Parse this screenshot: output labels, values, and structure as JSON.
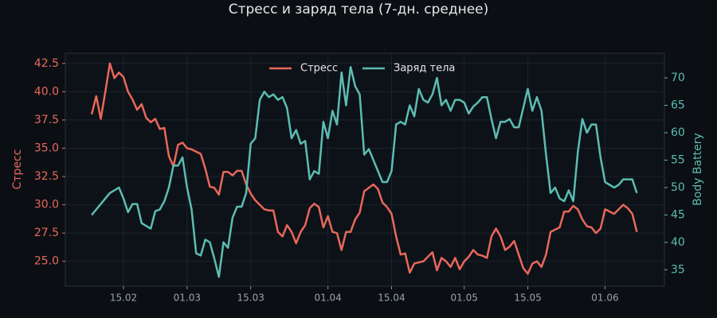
{
  "chart_data": {
    "type": "line",
    "title": "Стресс и заряд тела (7-дн. среднее)",
    "ylabel": "Стресс",
    "y2label": "Body Battery",
    "legend": "upper center",
    "grid": true,
    "x": [
      "08.02",
      "09.02",
      "10.02",
      "11.02",
      "12.02",
      "13.02",
      "14.02",
      "15.02",
      "16.02",
      "17.02",
      "18.02",
      "19.02",
      "20.02",
      "21.02",
      "22.02",
      "23.02",
      "24.02",
      "25.02",
      "26.02",
      "27.02",
      "28.02",
      "01.03",
      "02.03",
      "03.03",
      "04.03",
      "05.03",
      "06.03",
      "07.03",
      "08.03",
      "09.03",
      "10.03",
      "11.03",
      "12.03",
      "13.03",
      "14.03",
      "15.03",
      "16.03",
      "17.03",
      "18.03",
      "19.03",
      "20.03",
      "21.03",
      "22.03",
      "23.03",
      "24.03",
      "25.03",
      "26.03",
      "27.03",
      "28.03",
      "29.03",
      "30.03",
      "31.03",
      "01.04",
      "02.04",
      "03.04",
      "04.04",
      "05.04",
      "06.04",
      "07.04",
      "08.04",
      "09.04",
      "10.04",
      "11.04",
      "12.04",
      "13.04",
      "14.04",
      "15.04",
      "16.04",
      "17.04",
      "18.04",
      "19.04",
      "20.04",
      "21.04",
      "22.04",
      "23.04",
      "24.04",
      "25.04",
      "26.04",
      "27.04",
      "28.04",
      "29.04",
      "30.04",
      "01.05",
      "02.05",
      "03.05",
      "04.05",
      "05.05",
      "06.05",
      "07.05",
      "08.05",
      "09.05",
      "10.05",
      "11.05",
      "12.05",
      "13.05",
      "14.05",
      "15.05",
      "16.05",
      "17.05",
      "18.05",
      "19.05",
      "20.05",
      "21.05",
      "22.05",
      "23.05",
      "24.05",
      "25.05",
      "26.05",
      "27.05",
      "28.05",
      "29.05",
      "30.05",
      "31.05",
      "01.06",
      "02.06",
      "03.06",
      "04.06",
      "05.06",
      "06.06",
      "07.06",
      "08.06"
    ],
    "xticks": [
      "15.02",
      "01.03",
      "15.03",
      "01.04",
      "15.04",
      "01.05",
      "15.05",
      "01.06"
    ],
    "ylim": [
      22.8,
      43.4
    ],
    "yticks": [
      {
        "value": 25,
        "label": "25.0"
      },
      27.5,
      {
        "value": 30,
        "label": "30.0"
      },
      32.5,
      {
        "value": 35,
        "label": "35.0"
      },
      37.5,
      {
        "value": 40,
        "label": "40.0"
      },
      42.5
    ],
    "y2lim": [
      32,
      74.5
    ],
    "y2ticks": [
      35,
      40,
      45,
      50,
      55,
      60,
      65,
      70
    ],
    "series": [
      {
        "name": "Стресс",
        "color": "#e8685a",
        "axis": "y",
        "values": [
          38.0,
          39.6,
          37.6,
          40.0,
          42.5,
          41.2,
          41.7,
          41.3,
          40.0,
          39.3,
          38.4,
          38.9,
          37.7,
          37.3,
          37.6,
          36.7,
          36.8,
          34.3,
          33.4,
          35.3,
          35.5,
          35.0,
          34.9,
          34.7,
          34.5,
          33.2,
          31.6,
          31.5,
          30.9,
          32.9,
          32.9,
          32.6,
          33.0,
          33.0,
          31.8,
          31.0,
          30.4,
          30.0,
          29.6,
          29.5,
          29.5,
          27.6,
          27.2,
          28.2,
          27.6,
          26.6,
          27.6,
          28.2,
          29.7,
          30.1,
          29.8,
          28.0,
          29.0,
          27.6,
          27.5,
          26.0,
          27.6,
          27.6,
          28.7,
          29.3,
          31.2,
          31.5,
          31.8,
          31.4,
          30.2,
          29.8,
          29.2,
          27.2,
          25.6,
          25.7,
          24.0,
          24.8,
          24.9,
          25.0,
          25.4,
          25.8,
          24.2,
          25.3,
          25.0,
          24.5,
          25.3,
          24.3,
          25.0,
          25.4,
          26.0,
          25.6,
          25.5,
          25.3,
          27.2,
          27.9,
          27.2,
          26.0,
          26.3,
          26.8,
          25.6,
          24.4,
          23.9,
          24.8,
          25.0,
          24.5,
          25.6,
          27.6,
          27.8,
          28.0,
          29.4,
          29.4,
          29.9,
          29.6,
          28.7,
          28.1,
          28.0,
          27.5,
          27.9,
          29.6,
          29.4,
          29.2,
          29.6,
          30.0,
          29.7,
          29.2,
          27.6
        ]
      },
      {
        "name": "Заряд тела",
        "color": "#5bbdb3",
        "axis": "y2",
        "values": [
          45,
          46,
          47,
          48,
          49,
          49.5,
          50,
          48,
          45.5,
          47,
          47,
          43.5,
          43,
          42.5,
          45.7,
          46,
          47.5,
          50,
          54,
          54,
          55.5,
          50,
          46,
          38,
          37.6,
          40.5,
          40,
          37,
          33.7,
          40,
          39,
          44.5,
          46.5,
          46.5,
          49,
          58,
          59,
          66,
          67.5,
          66.5,
          67,
          66,
          66.5,
          64.5,
          59,
          60.5,
          58,
          58.5,
          51.5,
          53,
          52.5,
          62,
          59,
          64,
          61.5,
          71,
          65,
          72,
          68.5,
          67,
          56,
          57,
          55,
          53,
          51,
          51,
          53,
          61.5,
          62,
          61.5,
          65,
          63,
          68,
          66,
          65.5,
          67,
          70,
          65,
          66,
          64,
          66,
          66,
          65.5,
          63.5,
          64.8,
          65.5,
          66.5,
          66.5,
          62.5,
          59,
          62,
          62,
          62.5,
          61,
          61,
          64.5,
          68,
          64,
          66.5,
          64,
          56,
          49,
          50,
          48,
          47.5,
          49.5,
          47.5,
          56.5,
          62.5,
          60,
          61.5,
          61.5,
          55.5,
          51,
          50.5,
          50,
          50.5,
          51.5,
          51.5,
          51.5,
          49
        ]
      }
    ]
  }
}
